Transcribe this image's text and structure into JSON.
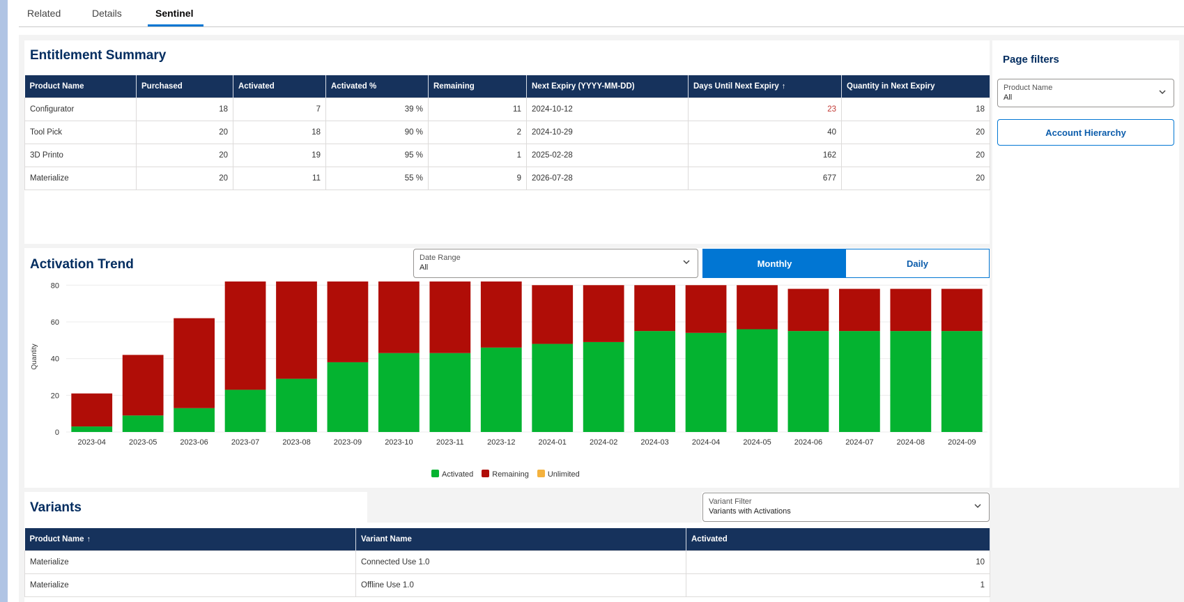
{
  "tabs": [
    {
      "label": "Related",
      "active": false
    },
    {
      "label": "Details",
      "active": false
    },
    {
      "label": "Sentinel",
      "active": true
    }
  ],
  "entitlement": {
    "title": "Entitlement Summary",
    "columns": [
      "Product Name",
      "Purchased",
      "Activated",
      "Activated %",
      "Remaining",
      "Next Expiry (YYYY-MM-DD)",
      "Days Until Next Expiry",
      "Quantity in Next Expiry"
    ],
    "sort_arrow": "↑",
    "rows": [
      {
        "product": "Configurator",
        "purchased": "18",
        "activated": "7",
        "pct": "39 %",
        "remaining": "11",
        "expiry": "2024-10-12",
        "days": "23",
        "qty": "18"
      },
      {
        "product": "Tool Pick",
        "purchased": "20",
        "activated": "18",
        "pct": "90 %",
        "remaining": "2",
        "expiry": "2024-10-29",
        "days": "40",
        "qty": "20"
      },
      {
        "product": "3D Printo",
        "purchased": "20",
        "activated": "19",
        "pct": "95 %",
        "remaining": "1",
        "expiry": "2025-02-28",
        "days": "162",
        "qty": "20"
      },
      {
        "product": "Materialize",
        "purchased": "20",
        "activated": "11",
        "pct": "55 %",
        "remaining": "9",
        "expiry": "2026-07-28",
        "days": "677",
        "qty": "20"
      }
    ],
    "urgent_color": "#c23934"
  },
  "activation": {
    "title": "Activation Trend",
    "date_range": {
      "label": "Date Range",
      "value": "All"
    },
    "toggle": {
      "monthly": "Monthly",
      "daily": "Daily",
      "selected": "Monthly"
    }
  },
  "chart_data": {
    "type": "bar",
    "stacked": true,
    "categories": [
      "2023-04",
      "2023-05",
      "2023-06",
      "2023-07",
      "2023-08",
      "2023-09",
      "2023-10",
      "2023-11",
      "2023-12",
      "2024-01",
      "2024-02",
      "2024-03",
      "2024-04",
      "2024-05",
      "2024-06",
      "2024-07",
      "2024-08",
      "2024-09"
    ],
    "series": [
      {
        "name": "Activated",
        "color": "#04b330",
        "values": [
          3,
          9,
          13,
          23,
          29,
          38,
          43,
          43,
          46,
          48,
          49,
          55,
          54,
          56,
          55,
          55,
          55,
          55
        ]
      },
      {
        "name": "Remaining",
        "color": "#b00d07",
        "values": [
          18,
          33,
          49,
          59,
          53,
          44,
          39,
          39,
          36,
          32,
          31,
          25,
          26,
          24,
          23,
          23,
          23,
          23
        ]
      },
      {
        "name": "Unlimited",
        "color": "#f4b23e",
        "values": [
          0,
          0,
          0,
          0,
          0,
          0,
          0,
          0,
          0,
          0,
          0,
          0,
          0,
          0,
          0,
          0,
          0,
          0
        ]
      }
    ],
    "ylabel": "Quantity",
    "yticks": [
      0,
      20,
      40,
      60,
      80
    ],
    "ylim": [
      0,
      82
    ],
    "legend": "bottom-center"
  },
  "filters": {
    "title": "Page filters",
    "product": {
      "label": "Product Name",
      "value": "All"
    },
    "account_button": "Account Hierarchy"
  },
  "variants": {
    "title": "Variants",
    "filter": {
      "label": "Variant Filter",
      "value": "Variants with Activations"
    },
    "columns": [
      "Product Name",
      "Variant Name",
      "Activated"
    ],
    "sort_arrow": "↑",
    "rows": [
      {
        "product": "Materialize",
        "variant": "Connected Use 1.0",
        "activated": "10"
      },
      {
        "product": "Materialize",
        "variant": "Offline Use 1.0",
        "activated": "1"
      }
    ]
  }
}
